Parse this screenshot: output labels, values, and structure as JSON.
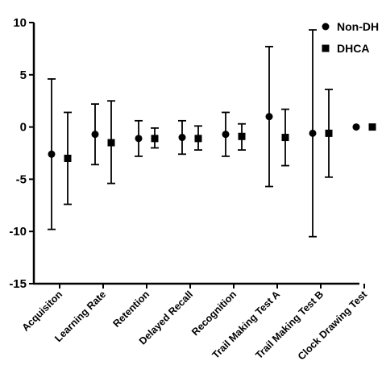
{
  "chart_data": {
    "type": "scatter",
    "categories": [
      "Acquisiton",
      "Learning Rate",
      "Retention",
      "Delayed Recall",
      "Recognition",
      "Trail Making Test A",
      "Trail Making Test B",
      "Clock Drawing Test"
    ],
    "ylim": [
      -15,
      10
    ],
    "yticks": [
      10,
      5,
      0,
      -5,
      -10,
      -15
    ],
    "ytick_labels": [
      "10",
      "5",
      "0",
      "-5",
      "-10",
      "-15"
    ],
    "grid": false,
    "legend_placement": "top-right",
    "series": [
      {
        "name": "Non-DH",
        "marker": "circle",
        "color": "#000000",
        "values": [
          -2.6,
          -0.7,
          -1.1,
          -1.0,
          -0.7,
          1.0,
          -0.6,
          0.0
        ],
        "upper": [
          4.6,
          2.2,
          0.6,
          0.6,
          1.4,
          7.7,
          9.3,
          0.0
        ],
        "lower": [
          -9.8,
          -3.6,
          -2.8,
          -2.6,
          -2.8,
          -5.7,
          -10.5,
          0.0
        ]
      },
      {
        "name": "DHCA",
        "marker": "square",
        "color": "#000000",
        "values": [
          -3.0,
          -1.5,
          -1.1,
          -1.1,
          -0.9,
          -1.0,
          -0.6,
          0.0
        ],
        "upper": [
          1.4,
          2.5,
          -0.1,
          0.1,
          0.3,
          1.7,
          3.6,
          0.0
        ],
        "lower": [
          -7.4,
          -5.4,
          -2.0,
          -2.2,
          -2.2,
          -3.7,
          -4.8,
          0.0
        ]
      }
    ]
  }
}
